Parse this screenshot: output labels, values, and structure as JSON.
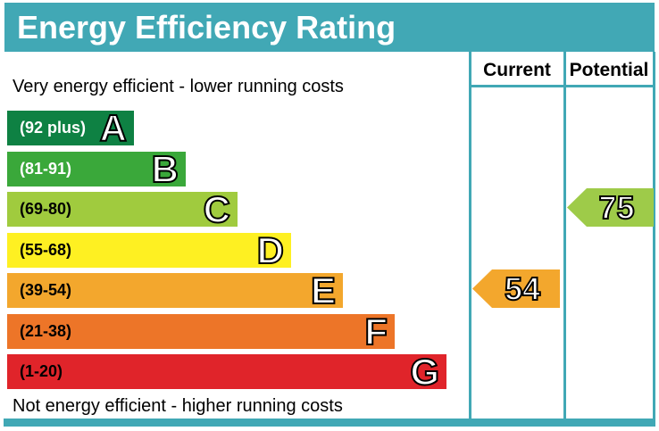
{
  "title": "Energy Efficiency Rating",
  "header": {
    "current": "Current",
    "potential": "Potential"
  },
  "captions": {
    "top": "Very energy efficient - lower running costs",
    "bottom": "Not energy efficient - higher running costs"
  },
  "bands": [
    {
      "letter": "A",
      "label": "(92 plus)",
      "color": "#0e8143",
      "label_color": "#ffffff"
    },
    {
      "letter": "B",
      "label": "(81-91)",
      "color": "#3aa83a",
      "label_color": "#ffffff"
    },
    {
      "letter": "C",
      "label": "(69-80)",
      "color": "#a0cb3e",
      "label_color": "#000000"
    },
    {
      "letter": "D",
      "label": "(55-68)",
      "color": "#fef022",
      "label_color": "#000000"
    },
    {
      "letter": "E",
      "label": "(39-54)",
      "color": "#f3a72d",
      "label_color": "#000000"
    },
    {
      "letter": "F",
      "label": "(21-38)",
      "color": "#ed7528",
      "label_color": "#000000"
    },
    {
      "letter": "G",
      "label": "(1-20)",
      "color": "#e0242a",
      "label_color": "#000000"
    }
  ],
  "ratings": {
    "current": {
      "value": "54",
      "band": "E",
      "color": "#f3a72d"
    },
    "potential": {
      "value": "75",
      "band": "C",
      "color": "#9ecb49"
    }
  },
  "colors": {
    "frame": "#41a8b5",
    "background": "#ffffff"
  },
  "chart_data": {
    "type": "bar",
    "title": "Energy Efficiency Rating",
    "categories": [
      "A",
      "B",
      "C",
      "D",
      "E",
      "F",
      "G"
    ],
    "band_ranges": [
      "92 plus",
      "81-91",
      "69-80",
      "55-68",
      "39-54",
      "21-38",
      "1-20"
    ],
    "band_colors": [
      "#0e8143",
      "#3aa83a",
      "#a0cb3e",
      "#fef022",
      "#f3a72d",
      "#ed7528",
      "#e0242a"
    ],
    "series": [
      {
        "name": "Current",
        "value": 54,
        "band": "E",
        "color": "#f3a72d"
      },
      {
        "name": "Potential",
        "value": 75,
        "band": "C",
        "color": "#9ecb49"
      }
    ],
    "scale": [
      1,
      100
    ],
    "annotations": [
      "Very energy efficient - lower running costs",
      "Not energy efficient - higher running costs"
    ],
    "legend_position": "top-right-columns"
  }
}
